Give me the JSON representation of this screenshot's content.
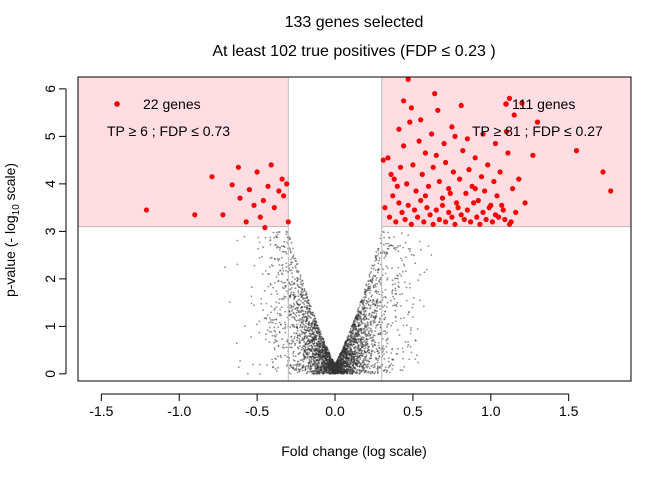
{
  "chart_data": {
    "type": "scatter",
    "title": "133 genes selected",
    "subtitle": "At least 102 true positives (FDP ≤ 0.23 )",
    "xlabel": "Fold change (log scale)",
    "ylabel_main": "p-value (- log",
    "ylabel_sub": "10",
    "ylabel_end": " scale)",
    "xlim": [
      -1.65,
      1.9
    ],
    "ylim": [
      -0.15,
      6.25
    ],
    "x_ticks": [
      -1.5,
      -1.0,
      -0.5,
      0.0,
      0.5,
      1.0,
      1.5
    ],
    "x_tick_labels": [
      "-1.5",
      "-1.0",
      "-0.5",
      "0.0",
      "0.5",
      "1.0",
      "1.5"
    ],
    "y_ticks": [
      0,
      1,
      2,
      3,
      4,
      5,
      6
    ],
    "y_tick_labels": [
      "0",
      "1",
      "2",
      "3",
      "4",
      "5",
      "6"
    ],
    "thresholds": {
      "fold_change": [
        -0.3,
        0.3
      ],
      "p_value": 3.1
    },
    "colors": {
      "selected": "#ff0000",
      "background_points": "#333333",
      "region": "#ffdde2",
      "threshold_lines": "#bbbbbb"
    },
    "background_points": {
      "count": 3500,
      "description_shape": "volcano"
    },
    "left_group": {
      "label": "22 genes",
      "stats": "TP ≥ 6 ; FDP ≤ 0.73",
      "points": [
        [
          -1.21,
          3.45
        ],
        [
          -0.9,
          3.35
        ],
        [
          -0.79,
          4.15
        ],
        [
          -0.72,
          3.35
        ],
        [
          -0.66,
          3.98
        ],
        [
          -0.62,
          4.35
        ],
        [
          -0.61,
          3.7
        ],
        [
          -0.57,
          3.2
        ],
        [
          -0.55,
          3.88
        ],
        [
          -0.52,
          3.55
        ],
        [
          -0.5,
          4.25
        ],
        [
          -0.48,
          3.3
        ],
        [
          -0.46,
          3.65
        ],
        [
          -0.43,
          3.95
        ],
        [
          -0.41,
          4.4
        ],
        [
          -0.39,
          3.5
        ],
        [
          -0.36,
          3.85
        ],
        [
          -0.34,
          4.1
        ],
        [
          -0.33,
          3.75
        ],
        [
          -0.31,
          4.0
        ],
        [
          -0.3,
          3.2
        ],
        [
          -0.45,
          3.08
        ]
      ]
    },
    "right_group": {
      "label": "111 genes",
      "stats": "TP ≥ 81 ;  FDP ≤ 0.27",
      "points": [
        [
          0.47,
          6.2
        ],
        [
          0.44,
          5.75
        ],
        [
          0.49,
          5.6
        ],
        [
          0.64,
          5.9
        ],
        [
          0.41,
          5.15
        ],
        [
          0.48,
          5.3
        ],
        [
          0.55,
          5.35
        ],
        [
          0.66,
          5.55
        ],
        [
          0.75,
          5.2
        ],
        [
          0.81,
          5.65
        ],
        [
          1.12,
          5.8
        ],
        [
          1.15,
          5.45
        ],
        [
          1.2,
          5.7
        ],
        [
          1.1,
          5.1
        ],
        [
          1.3,
          5.3
        ],
        [
          0.31,
          4.5
        ],
        [
          0.34,
          4.55
        ],
        [
          0.38,
          4.1
        ],
        [
          0.42,
          4.35
        ],
        [
          0.46,
          4.0
        ],
        [
          0.5,
          4.4
        ],
        [
          0.52,
          3.85
        ],
        [
          0.56,
          4.2
        ],
        [
          0.58,
          4.65
        ],
        [
          0.6,
          3.95
        ],
        [
          0.63,
          4.35
        ],
        [
          0.65,
          4.6
        ],
        [
          0.67,
          4.05
        ],
        [
          0.69,
          3.7
        ],
        [
          0.71,
          4.45
        ],
        [
          0.73,
          3.9
        ],
        [
          0.76,
          4.25
        ],
        [
          0.78,
          3.6
        ],
        [
          0.8,
          4.1
        ],
        [
          0.82,
          4.7
        ],
        [
          0.84,
          3.8
        ],
        [
          0.86,
          4.3
        ],
        [
          0.88,
          3.95
        ],
        [
          0.9,
          4.55
        ],
        [
          0.92,
          3.65
        ],
        [
          0.94,
          4.15
        ],
        [
          0.96,
          3.85
        ],
        [
          0.98,
          4.4
        ],
        [
          1.0,
          3.55
        ],
        [
          1.02,
          4.05
        ],
        [
          1.04,
          3.75
        ],
        [
          1.06,
          4.25
        ],
        [
          1.08,
          3.45
        ],
        [
          1.11,
          4.65
        ],
        [
          1.14,
          3.9
        ],
        [
          1.18,
          4.1
        ],
        [
          1.22,
          3.6
        ],
        [
          1.27,
          4.6
        ],
        [
          1.55,
          4.7
        ],
        [
          1.72,
          4.25
        ],
        [
          1.77,
          3.85
        ],
        [
          0.32,
          3.5
        ],
        [
          0.35,
          3.3
        ],
        [
          0.37,
          3.75
        ],
        [
          0.39,
          3.2
        ],
        [
          0.41,
          3.6
        ],
        [
          0.43,
          3.4
        ],
        [
          0.45,
          3.25
        ],
        [
          0.47,
          3.55
        ],
        [
          0.49,
          3.15
        ],
        [
          0.51,
          3.45
        ],
        [
          0.53,
          3.3
        ],
        [
          0.55,
          3.65
        ],
        [
          0.57,
          3.2
        ],
        [
          0.59,
          3.5
        ],
        [
          0.61,
          3.35
        ],
        [
          0.63,
          3.15
        ],
        [
          0.65,
          3.45
        ],
        [
          0.67,
          3.25
        ],
        [
          0.69,
          3.55
        ],
        [
          0.71,
          3.2
        ],
        [
          0.73,
          3.4
        ],
        [
          0.75,
          3.3
        ],
        [
          0.77,
          3.15
        ],
        [
          0.79,
          3.5
        ],
        [
          0.81,
          3.35
        ],
        [
          0.83,
          3.25
        ],
        [
          0.85,
          3.45
        ],
        [
          0.87,
          3.2
        ],
        [
          0.89,
          3.6
        ],
        [
          0.91,
          3.3
        ],
        [
          0.93,
          3.15
        ],
        [
          0.95,
          3.4
        ],
        [
          0.97,
          3.25
        ],
        [
          0.99,
          3.5
        ],
        [
          1.01,
          3.2
        ],
        [
          1.03,
          3.35
        ],
        [
          1.05,
          3.3
        ],
        [
          1.07,
          3.55
        ],
        [
          1.09,
          3.25
        ],
        [
          1.13,
          3.2
        ],
        [
          1.16,
          3.4
        ],
        [
          0.44,
          4.8
        ],
        [
          0.54,
          4.9
        ],
        [
          0.62,
          5.05
        ],
        [
          0.7,
          4.85
        ],
        [
          0.77,
          5.0
        ],
        [
          0.85,
          4.95
        ],
        [
          0.95,
          5.05
        ],
        [
          1.03,
          4.85
        ],
        [
          0.36,
          4.2
        ],
        [
          0.4,
          3.95
        ],
        [
          0.58,
          3.75
        ],
        [
          0.74,
          3.8
        ],
        [
          0.9,
          3.9
        ],
        [
          1.12,
          3.15
        ]
      ]
    }
  }
}
